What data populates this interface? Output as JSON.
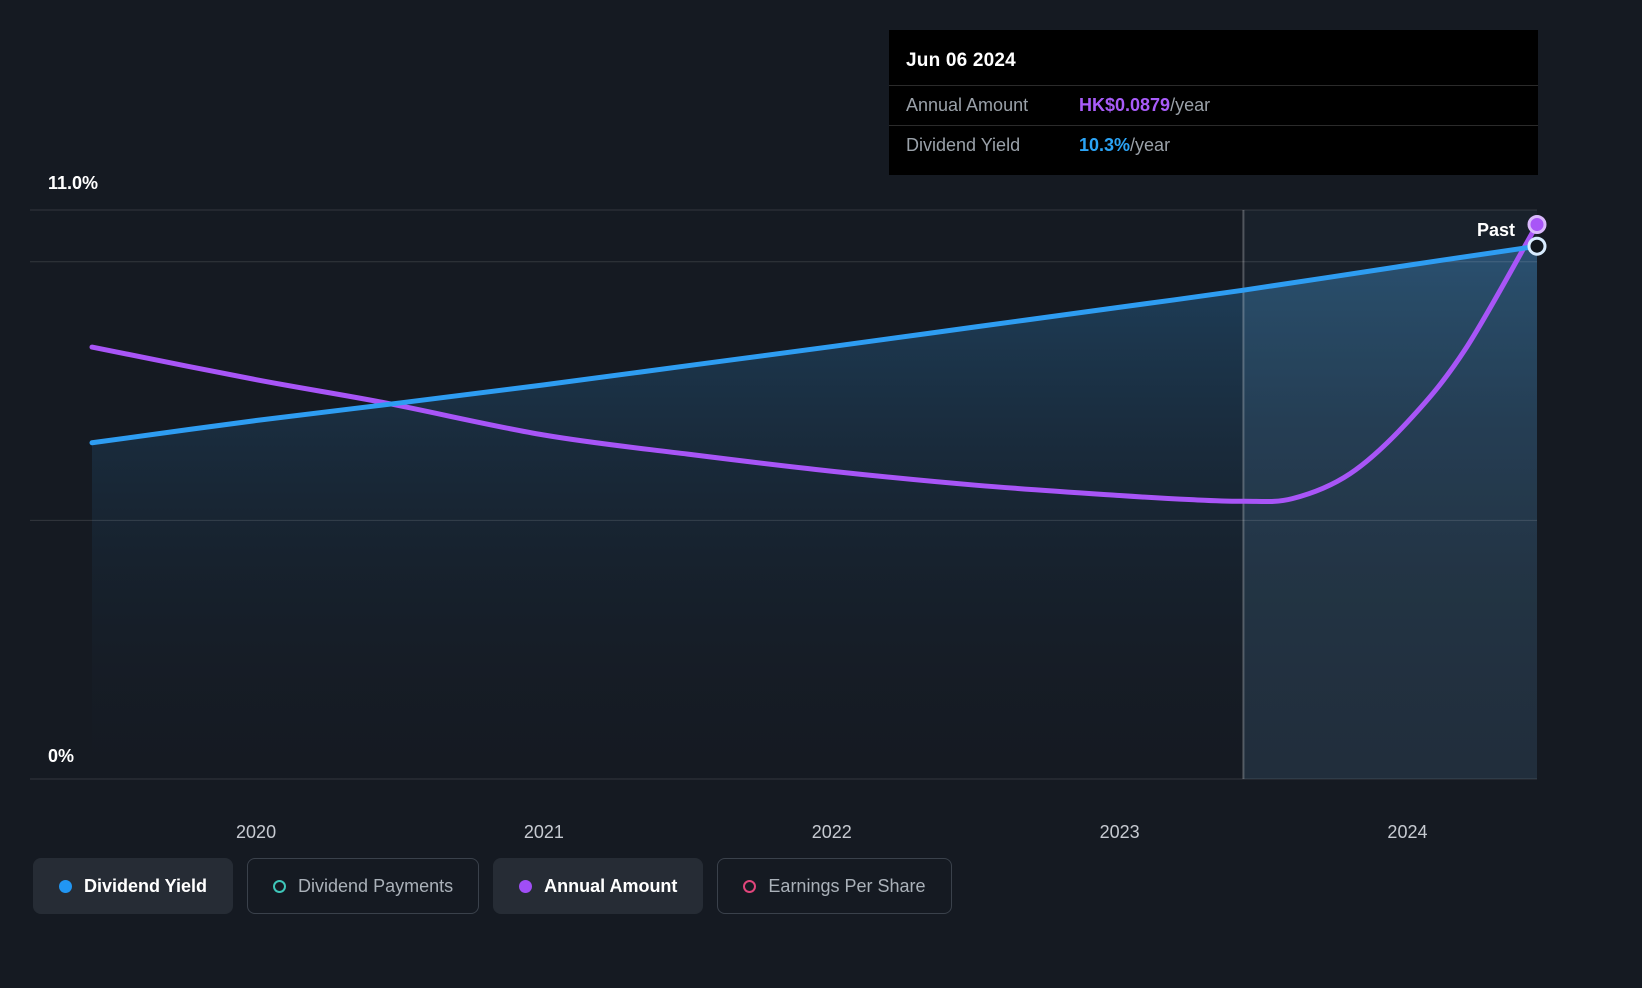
{
  "tooltip": {
    "date": "Jun 06 2024",
    "rows": [
      {
        "label": "Annual Amount",
        "value": "HK$0.0879",
        "suffix": "/year",
        "color": "#a85cf9"
      },
      {
        "label": "Dividend Yield",
        "value": "10.3%",
        "suffix": "/year",
        "color": "#2ba3f5"
      }
    ]
  },
  "chart_data": {
    "type": "line",
    "title": "",
    "x_range": [
      2019.43,
      2024.45
    ],
    "x_ticks": [
      "2020",
      "2021",
      "2022",
      "2023",
      "2024"
    ],
    "y_axis": {
      "min": 0,
      "max": 11.0,
      "top_label": "11.0%",
      "bottom_label": "0%",
      "unit": "%"
    },
    "gridlines_percent": [
      11,
      10,
      5,
      0
    ],
    "divider_year": 2023.43,
    "past_label": "Past",
    "background_color": "#151a22",
    "series": [
      {
        "name": "Dividend Yield",
        "color": "#2e9df2",
        "style": "area",
        "points": [
          [
            2019.43,
            6.5
          ],
          [
            2020.0,
            6.93
          ],
          [
            2020.5,
            7.27
          ],
          [
            2021.0,
            7.62
          ],
          [
            2021.5,
            7.99
          ],
          [
            2022.0,
            8.36
          ],
          [
            2022.5,
            8.74
          ],
          [
            2023.0,
            9.12
          ],
          [
            2023.43,
            9.45
          ],
          [
            2024.0,
            9.93
          ],
          [
            2024.45,
            10.3
          ]
        ]
      },
      {
        "name": "Annual Amount",
        "color": "#a855f7",
        "style": "line",
        "points": [
          [
            2019.43,
            8.35
          ],
          [
            2020.0,
            7.72
          ],
          [
            2020.45,
            7.27
          ],
          [
            2021.0,
            6.65
          ],
          [
            2021.5,
            6.28
          ],
          [
            2022.0,
            5.95
          ],
          [
            2022.5,
            5.68
          ],
          [
            2023.0,
            5.48
          ],
          [
            2023.25,
            5.4
          ],
          [
            2023.43,
            5.37
          ],
          [
            2023.6,
            5.42
          ],
          [
            2023.8,
            5.9
          ],
          [
            2024.0,
            6.9
          ],
          [
            2024.2,
            8.3
          ],
          [
            2024.45,
            10.72
          ]
        ]
      }
    ]
  },
  "legend": [
    {
      "label": "Dividend Yield",
      "color": "#2196f3",
      "style": "filled",
      "active": true
    },
    {
      "label": "Dividend Payments",
      "color": "#3ec6b9",
      "style": "open",
      "active": false
    },
    {
      "label": "Annual Amount",
      "color": "#a04ef6",
      "style": "filled",
      "active": true
    },
    {
      "label": "Earnings Per Share",
      "color": "#e0457b",
      "style": "open",
      "active": false
    }
  ]
}
